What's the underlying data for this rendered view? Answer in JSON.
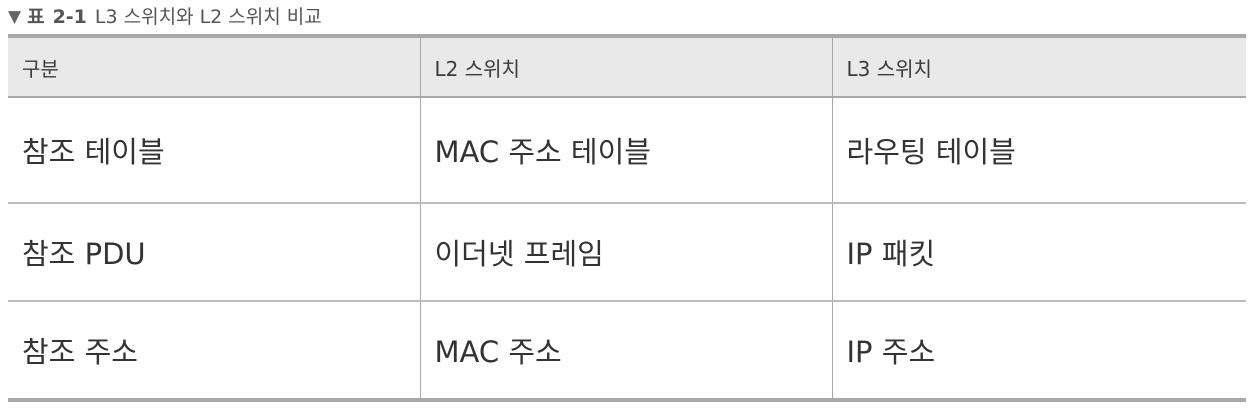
{
  "caption": {
    "marker": "▼",
    "label": "표",
    "number": "2-1",
    "title": "L3 스위치와 L2 스위치 비교"
  },
  "table": {
    "headers": [
      "구분",
      "L2 스위치",
      "L3 스위치"
    ],
    "rows": [
      [
        "참조 테이블",
        "MAC 주소 테이블",
        "라우팅 테이블"
      ],
      [
        "참조 PDU",
        "이더넷 프레임",
        "IP 패킷"
      ],
      [
        "참조 주소",
        "MAC 주소",
        "IP 주소"
      ]
    ]
  }
}
